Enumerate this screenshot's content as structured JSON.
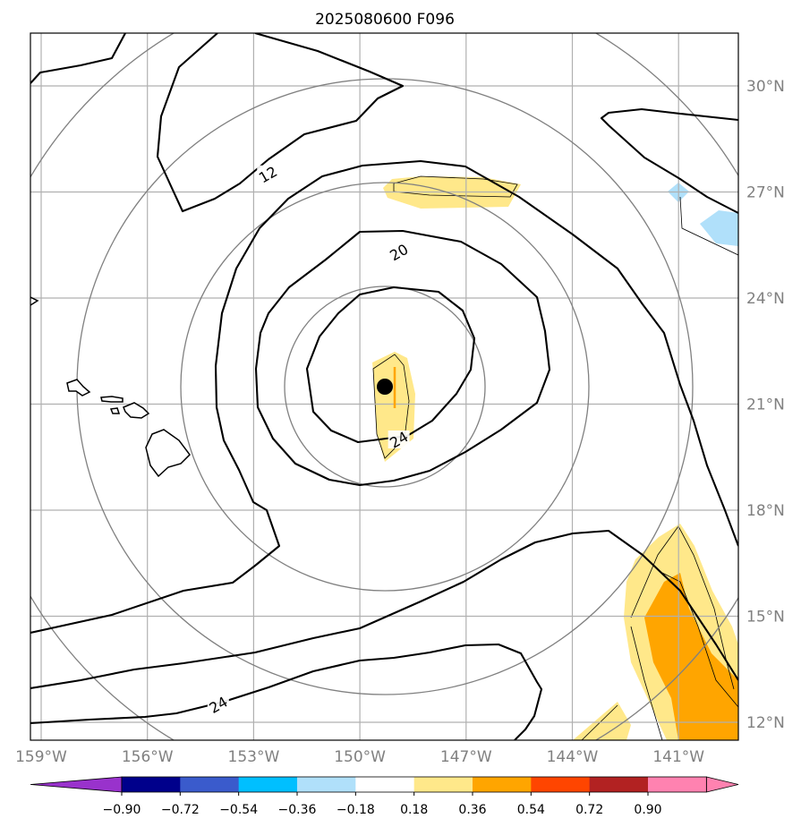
{
  "title": "2025080600 F096",
  "chart_data": {
    "type": "contour",
    "title": "2025080600 F096",
    "x_ticks": [
      "159°W",
      "156°W",
      "153°W",
      "150°W",
      "147°W",
      "144°W",
      "141°W"
    ],
    "x_tick_values": [
      -159,
      -156,
      -153,
      -150,
      -147,
      -144,
      -141
    ],
    "y_ticks": [
      "12°N",
      "15°N",
      "18°N",
      "21°N",
      "24°N",
      "27°N",
      "30°N"
    ],
    "y_tick_values": [
      12,
      15,
      18,
      21,
      24,
      27,
      30
    ],
    "xlim": [
      -159.3,
      -139.2
    ],
    "ylim": [
      11.5,
      31.5
    ],
    "grid": true,
    "center": {
      "lon": -149.3,
      "lat": 21.5
    },
    "contour_labels": [
      {
        "text": "12",
        "lon": -152.6,
        "lat": 27.5
      },
      {
        "text": "20",
        "lon": -148.9,
        "lat": 25.3
      },
      {
        "text": "24",
        "lon": -148.9,
        "lat": 20.0
      },
      {
        "text": "24",
        "lon": -154.0,
        "lat": 12.5
      }
    ],
    "colorbar": {
      "ticks": [
        "−0.90",
        "−0.72",
        "−0.54",
        "−0.36",
        "−0.18",
        "0.18",
        "0.36",
        "0.54",
        "0.72",
        "0.90"
      ],
      "tick_values": [
        -0.9,
        -0.72,
        -0.54,
        -0.36,
        -0.18,
        0.18,
        0.36,
        0.54,
        0.72,
        0.9
      ],
      "colors": [
        "#9932cc",
        "#00008b",
        "#3a5bcc",
        "#00bfff",
        "#b0e0fa",
        "#ffffff",
        "#ffe88a",
        "#ffa500",
        "#ff4500",
        "#b22222",
        "#ff82b0"
      ],
      "extend": "both"
    }
  }
}
